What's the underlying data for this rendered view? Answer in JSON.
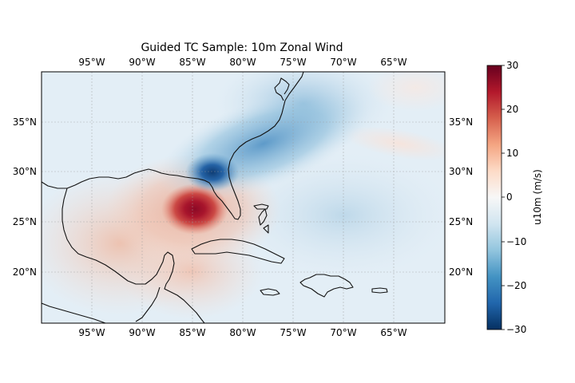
{
  "figure": {
    "title": "Guided TC Sample: 10m Zonal Wind"
  },
  "map": {
    "lon_ticks": [
      "95°W",
      "90°W",
      "85°W",
      "80°W",
      "75°W",
      "70°W",
      "65°W"
    ],
    "lat_ticks": [
      "35°N",
      "30°N",
      "25°N",
      "20°N"
    ],
    "extent": {
      "lon_min": -100,
      "lon_max": -60,
      "lat_min": 15,
      "lat_max": 40
    },
    "gridlines": true
  },
  "colorbar": {
    "label": "u10m (m/s)",
    "ticks": [
      "30",
      "20",
      "10",
      "0",
      "−10",
      "−20",
      "−30"
    ],
    "range": [
      -30,
      30
    ],
    "colormap": "RdBu_r",
    "colors": {
      "max": "#67001f",
      "mid": "#f7f7f7",
      "min": "#053061"
    }
  },
  "field": {
    "variable": "u10m",
    "units": "m/s",
    "features": [
      {
        "kind": "max",
        "lon": -84.5,
        "lat": 26.5,
        "value": 27
      },
      {
        "kind": "min",
        "lon": -82.5,
        "lat": 29.5,
        "value": -22
      }
    ]
  }
}
